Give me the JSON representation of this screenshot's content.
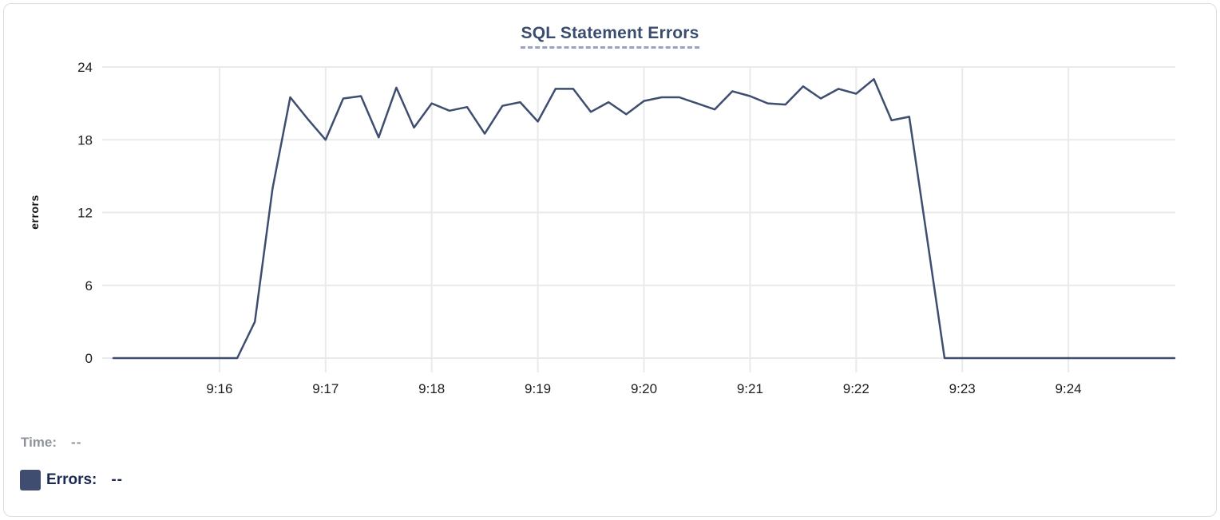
{
  "colors": {
    "line": "#3f4e70",
    "swatch": "#3f4e70",
    "grid": "#e9eaeb",
    "axis_text": "#1d1d1f",
    "axis_title_text": "#111111",
    "title_text": "#3b4d6e",
    "title_underline": "#97a3bf",
    "time_text": "#8e939b",
    "errors_text": "#1b2a55",
    "card_border": "#dadcdf",
    "background": "#ffffff"
  },
  "footer": {
    "time_label": "Time:",
    "time_value": "--",
    "errors_label": "Errors:",
    "errors_value": "--",
    "errors_swatch_icon": "series-color-square"
  },
  "chart_data": {
    "type": "line",
    "title": "SQL Statement Errors",
    "xlabel": "",
    "ylabel": "errors",
    "ylim": [
      0,
      24
    ],
    "yticks": [
      0,
      6,
      12,
      18,
      24
    ],
    "xticks": [
      "9:16",
      "9:17",
      "9:18",
      "9:19",
      "9:20",
      "9:21",
      "9:22",
      "9:23",
      "9:24"
    ],
    "x_range": [
      "9:15:00",
      "9:25:00"
    ],
    "grid": true,
    "legend_position": "bottom-left",
    "series": [
      {
        "name": "Errors",
        "x": [
          "9:15:00",
          "9:15:10",
          "9:15:20",
          "9:15:30",
          "9:15:40",
          "9:15:50",
          "9:16:00",
          "9:16:10",
          "9:16:20",
          "9:16:30",
          "9:16:40",
          "9:16:50",
          "9:17:00",
          "9:17:10",
          "9:17:20",
          "9:17:30",
          "9:17:40",
          "9:17:50",
          "9:18:00",
          "9:18:10",
          "9:18:20",
          "9:18:30",
          "9:18:40",
          "9:18:50",
          "9:19:00",
          "9:19:10",
          "9:19:20",
          "9:19:30",
          "9:19:40",
          "9:19:50",
          "9:20:00",
          "9:20:10",
          "9:20:20",
          "9:20:30",
          "9:20:40",
          "9:20:50",
          "9:21:00",
          "9:21:10",
          "9:21:20",
          "9:21:30",
          "9:21:40",
          "9:21:50",
          "9:22:00",
          "9:22:10",
          "9:22:20",
          "9:22:30",
          "9:22:40",
          "9:22:50",
          "9:23:00",
          "9:23:10",
          "9:23:20",
          "9:23:30",
          "9:23:40",
          "9:23:50",
          "9:24:00",
          "9:24:10",
          "9:24:20",
          "9:24:30",
          "9:24:40",
          "9:24:50",
          "9:25:00"
        ],
        "values": [
          0,
          0,
          0,
          0,
          0,
          0,
          0,
          0,
          3,
          14,
          21.5,
          19.7,
          18,
          21.4,
          21.6,
          18.2,
          22.3,
          19,
          21,
          20.4,
          20.7,
          18.5,
          20.8,
          21.1,
          19.5,
          22.2,
          22.2,
          20.3,
          21.1,
          20.1,
          21.2,
          21.5,
          21.5,
          21,
          20.5,
          22,
          21.6,
          21,
          20.9,
          22.4,
          21.4,
          22.2,
          21.8,
          23,
          19.6,
          19.9,
          10,
          0,
          0,
          0,
          0,
          0,
          0,
          0,
          0,
          0,
          0,
          0,
          0,
          0,
          0
        ]
      }
    ]
  }
}
